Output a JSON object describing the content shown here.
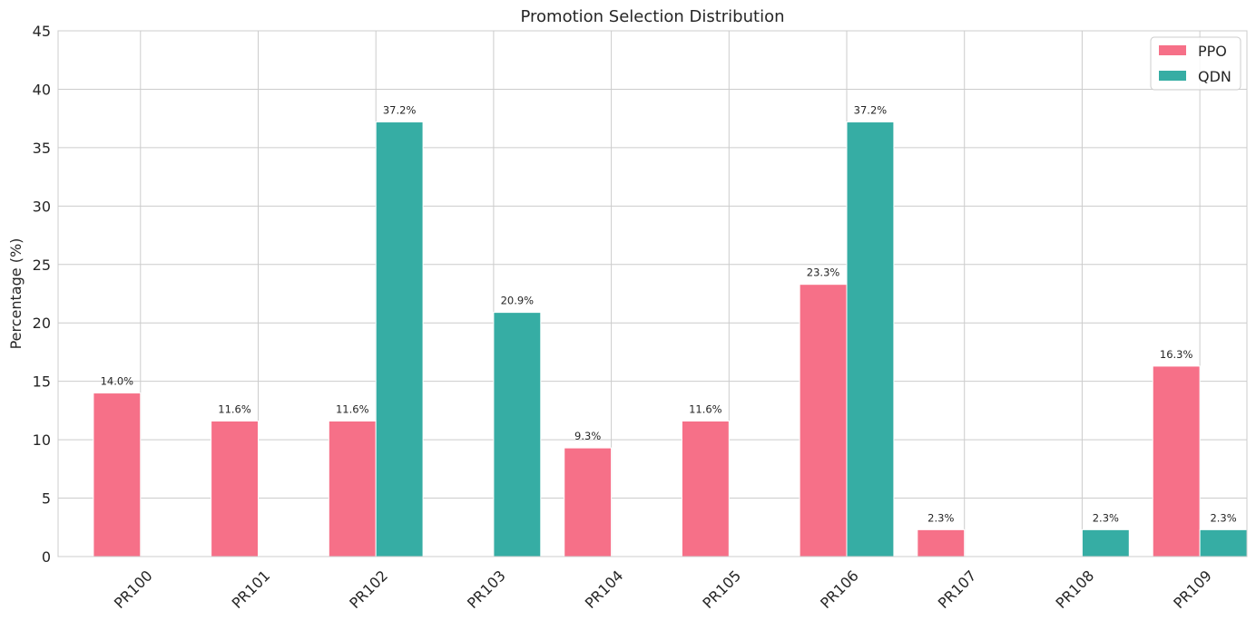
{
  "chart_data": {
    "type": "bar",
    "title": "Promotion Selection Distribution",
    "xlabel": "",
    "ylabel": "Percentage (%)",
    "ylim": [
      0,
      45
    ],
    "yticks": [
      0,
      5,
      10,
      15,
      20,
      25,
      30,
      35,
      40,
      45
    ],
    "grid": true,
    "legend_position": "top-right",
    "categories": [
      "PR100",
      "PR101",
      "PR102",
      "PR103",
      "PR104",
      "PR105",
      "PR106",
      "PR107",
      "PR108",
      "PR109"
    ],
    "series": [
      {
        "name": "PPO",
        "color": "#f67088",
        "values": [
          14.0,
          11.6,
          11.6,
          0,
          9.3,
          11.6,
          23.3,
          2.3,
          0,
          16.3
        ],
        "labels": [
          "14.0%",
          "11.6%",
          "11.6%",
          "",
          "9.3%",
          "11.6%",
          "23.3%",
          "2.3%",
          "",
          "16.3%"
        ]
      },
      {
        "name": "QDN",
        "color": "#36ada4",
        "values": [
          0,
          0,
          37.2,
          20.9,
          0,
          0,
          37.2,
          0,
          2.3,
          2.3
        ],
        "labels": [
          "",
          "",
          "37.2%",
          "20.9%",
          "",
          "",
          "37.2%",
          "",
          "2.3%",
          "2.3%"
        ]
      }
    ]
  }
}
